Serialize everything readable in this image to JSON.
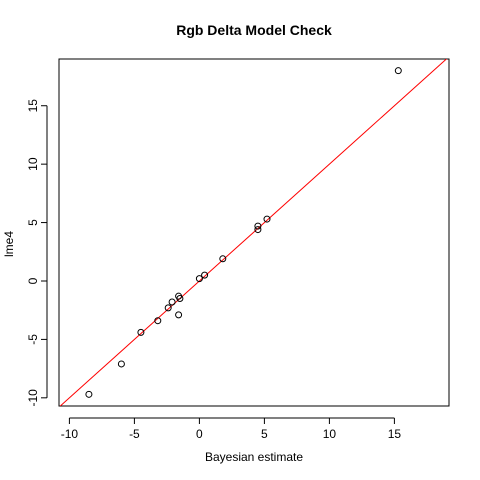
{
  "chart_data": {
    "type": "scatter",
    "title": "Rgb Delta Model Check",
    "xlabel": "Bayesian estimate",
    "ylabel": "lme4",
    "xlim": [
      -10.8,
      19.2
    ],
    "ylim": [
      -10.7,
      19.0
    ],
    "x_ticks": [
      -10,
      -5,
      0,
      5,
      10,
      15
    ],
    "y_ticks": [
      -10,
      -5,
      0,
      5,
      10,
      15
    ],
    "grid": false,
    "reference_line": {
      "type": "identity",
      "slope": 1,
      "intercept": 0,
      "color": "#ff0000"
    },
    "points": [
      {
        "x": 15.3,
        "y": 18.0
      },
      {
        "x": 5.2,
        "y": 5.3
      },
      {
        "x": 4.5,
        "y": 4.7
      },
      {
        "x": 4.5,
        "y": 4.4
      },
      {
        "x": 1.8,
        "y": 1.9
      },
      {
        "x": 0.4,
        "y": 0.5
      },
      {
        "x": 0.0,
        "y": 0.2
      },
      {
        "x": -1.6,
        "y": -1.3
      },
      {
        "x": -1.5,
        "y": -1.5
      },
      {
        "x": -2.1,
        "y": -1.8
      },
      {
        "x": -2.4,
        "y": -2.3
      },
      {
        "x": -1.6,
        "y": -2.9
      },
      {
        "x": -3.2,
        "y": -3.4
      },
      {
        "x": -4.5,
        "y": -4.4
      },
      {
        "x": -6.0,
        "y": -7.1
      },
      {
        "x": -8.5,
        "y": -9.7
      }
    ],
    "marker": {
      "shape": "open-circle",
      "color": "#000000"
    }
  }
}
